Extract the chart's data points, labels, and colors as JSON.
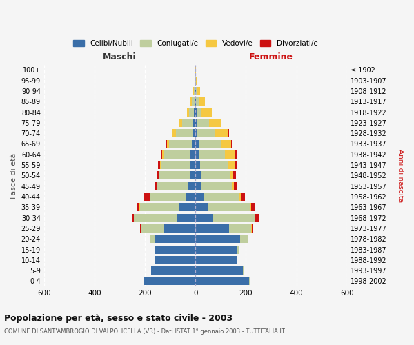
{
  "age_groups": [
    "100+",
    "95-99",
    "90-94",
    "85-89",
    "80-84",
    "75-79",
    "70-74",
    "65-69",
    "60-64",
    "55-59",
    "50-54",
    "45-49",
    "40-44",
    "35-39",
    "30-34",
    "25-29",
    "20-24",
    "15-19",
    "10-14",
    "5-9",
    "0-4"
  ],
  "birth_years": [
    "≤ 1902",
    "1903-1907",
    "1908-1912",
    "1913-1917",
    "1918-1922",
    "1923-1927",
    "1928-1932",
    "1933-1937",
    "1938-1942",
    "1943-1947",
    "1948-1952",
    "1953-1957",
    "1958-1962",
    "1963-1967",
    "1968-1972",
    "1973-1977",
    "1978-1982",
    "1983-1987",
    "1988-1992",
    "1993-1997",
    "1998-2002"
  ],
  "maschi_celibe": [
    0,
    0,
    2,
    4,
    5,
    8,
    12,
    15,
    22,
    22,
    24,
    28,
    38,
    65,
    75,
    125,
    160,
    160,
    160,
    175,
    205
  ],
  "maschi_coniugato": [
    0,
    1,
    5,
    10,
    20,
    45,
    65,
    90,
    105,
    115,
    118,
    122,
    140,
    155,
    168,
    88,
    18,
    2,
    2,
    2,
    2
  ],
  "maschi_vedovo": [
    0,
    0,
    2,
    5,
    10,
    12,
    15,
    8,
    5,
    4,
    3,
    2,
    2,
    2,
    1,
    3,
    2,
    0,
    0,
    0,
    0
  ],
  "maschi_divorziato": [
    0,
    0,
    0,
    0,
    0,
    0,
    1,
    2,
    5,
    8,
    9,
    11,
    22,
    12,
    8,
    3,
    2,
    0,
    0,
    0,
    0
  ],
  "femmine_celibe": [
    0,
    0,
    2,
    3,
    4,
    6,
    8,
    12,
    16,
    18,
    20,
    22,
    32,
    52,
    68,
    132,
    178,
    165,
    162,
    188,
    212
  ],
  "femmine_coniugata": [
    0,
    1,
    4,
    10,
    20,
    48,
    68,
    88,
    102,
    112,
    115,
    122,
    142,
    165,
    168,
    88,
    28,
    5,
    2,
    2,
    2
  ],
  "femmine_vedova": [
    2,
    4,
    12,
    25,
    40,
    50,
    55,
    42,
    38,
    28,
    14,
    8,
    5,
    4,
    2,
    2,
    2,
    0,
    0,
    0,
    0
  ],
  "femmine_divorziata": [
    0,
    0,
    0,
    0,
    0,
    0,
    2,
    3,
    6,
    9,
    11,
    11,
    16,
    16,
    14,
    4,
    2,
    0,
    0,
    0,
    0
  ],
  "colors": {
    "celibe": "#3a6ea8",
    "coniugato": "#bfce9e",
    "vedovo": "#f5c842",
    "divorziato": "#cc1111"
  },
  "title": "Popolazione per età, sesso e stato civile - 2003",
  "subtitle": "COMUNE DI SANT'AMBROGIO DI VALPOLICELLA (VR) - Dati ISTAT 1° gennaio 2003 - TUTTITALIA.IT",
  "xlabel_left": "Maschi",
  "xlabel_right": "Femmine",
  "ylabel_left": "Fasce di età",
  "ylabel_right": "Anni di nascita",
  "xlim": 600,
  "background_color": "#f5f5f5",
  "legend_labels": [
    "Celibi/Nubili",
    "Coniugati/e",
    "Vedovi/e",
    "Divorziati/e"
  ],
  "grid_color": "#ffffff",
  "center_line_color": "#aaaacc"
}
